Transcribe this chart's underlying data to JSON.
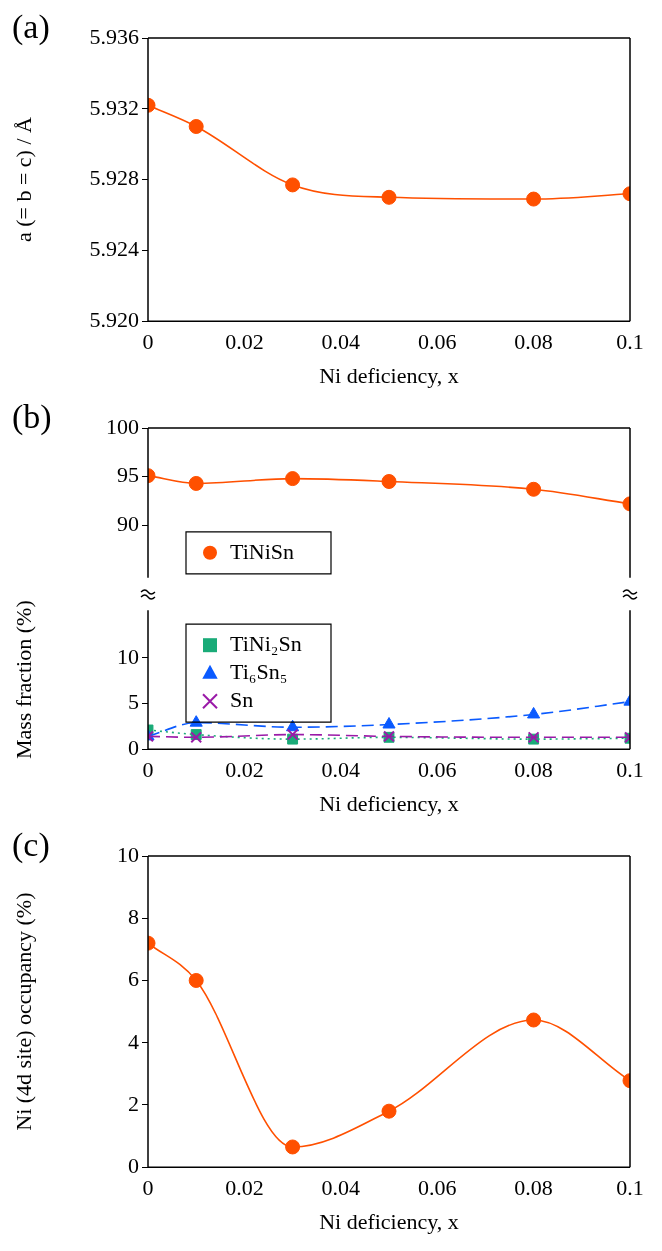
{
  "chart_data": [
    {
      "type": "line",
      "annotations": [
        "(a)"
      ],
      "xlabel": "Ni deficiency, x",
      "ylabel": "a (= b = c) / Å",
      "x": [
        0,
        0.01,
        0.03,
        0.05,
        0.08,
        0.1
      ],
      "marker": "circle",
      "line_style": "solid",
      "legend": false,
      "series": [
        {
          "color": "#ff5000",
          "values": [
            5.9322,
            5.931,
            5.9277,
            5.927,
            5.9269,
            5.9272
          ]
        }
      ],
      "xlim": [
        0,
        0.1
      ],
      "xticks": [
        0,
        0.02,
        0.04,
        0.06,
        0.08,
        0.1
      ],
      "ylim": [
        5.92,
        5.936
      ],
      "yticks": [
        {
          "value": 5.92,
          "label": "5.920"
        },
        5.924,
        5.928,
        5.932,
        5.936
      ]
    },
    {
      "type": "line",
      "annotations": [
        "(b)"
      ],
      "x": [
        0,
        0.01,
        0.03,
        0.05,
        0.08,
        0.1
      ],
      "legend": "bottom left",
      "tick_labels": "y",
      "series": [
        {
          "name": "TiNiSn",
          "color": "#ff5000",
          "marker": "circle",
          "line_style": "solid",
          "values": [
            95.1,
            94.3,
            94.8,
            94.5,
            93.7,
            92.2
          ]
        }
      ],
      "xlim": [
        0,
        0.1
      ],
      "ylim": [
        84.6,
        100
      ],
      "yticks": [
        90,
        95,
        100
      ]
    },
    {
      "type": "line",
      "xlabel": "Ni deficiency, x",
      "ylabel": "Mass fraction (%)",
      "x": [
        0,
        0.01,
        0.03,
        0.05,
        0.08,
        0.1
      ],
      "legend": "top left",
      "series": [
        {
          "name": "TiNi₂Sn",
          "color": "#1aab78",
          "marker": "square",
          "line_style": "dotted",
          "values": [
            2.1,
            1.6,
            1.1,
            1.3,
            1.1,
            1.2
          ]
        },
        {
          "name": "Ti₆Sn₅",
          "color": "#0a5aff",
          "marker": "triangle",
          "line_style": "dashed",
          "values": [
            1.4,
            2.9,
            2.4,
            2.7,
            3.8,
            5.2
          ]
        },
        {
          "name": "Sn",
          "color": "#9a1aa8",
          "marker": "cross",
          "line_style": "dashed",
          "values": [
            1.4,
            1.3,
            1.6,
            1.4,
            1.3,
            1.3
          ]
        }
      ],
      "xlim": [
        0,
        0.1
      ],
      "xticks": [
        0,
        0.02,
        0.04,
        0.06,
        0.08,
        0.1
      ],
      "ylim": [
        0,
        15.2
      ],
      "yticks": [
        0,
        5,
        10
      ]
    },
    {
      "type": "line",
      "annotations": [
        "(c)"
      ],
      "xlabel": "Ni deficiency, x",
      "ylabel": "Ni (4d site) occupancy (%)",
      "x": [
        0,
        0.01,
        0.03,
        0.05,
        0.08,
        0.1
      ],
      "marker": "circle",
      "line_style": "solid",
      "legend": false,
      "series": [
        {
          "color": "#ff5000",
          "values": [
            7.2,
            6.0,
            0.65,
            1.8,
            4.73,
            2.78
          ]
        }
      ],
      "xlim": [
        0,
        0.1
      ],
      "xticks": [
        0,
        0.02,
        0.04,
        0.06,
        0.08,
        0.1
      ],
      "ylim": [
        0,
        10
      ],
      "yticks": [
        0,
        2,
        4,
        6,
        8,
        10
      ]
    }
  ]
}
